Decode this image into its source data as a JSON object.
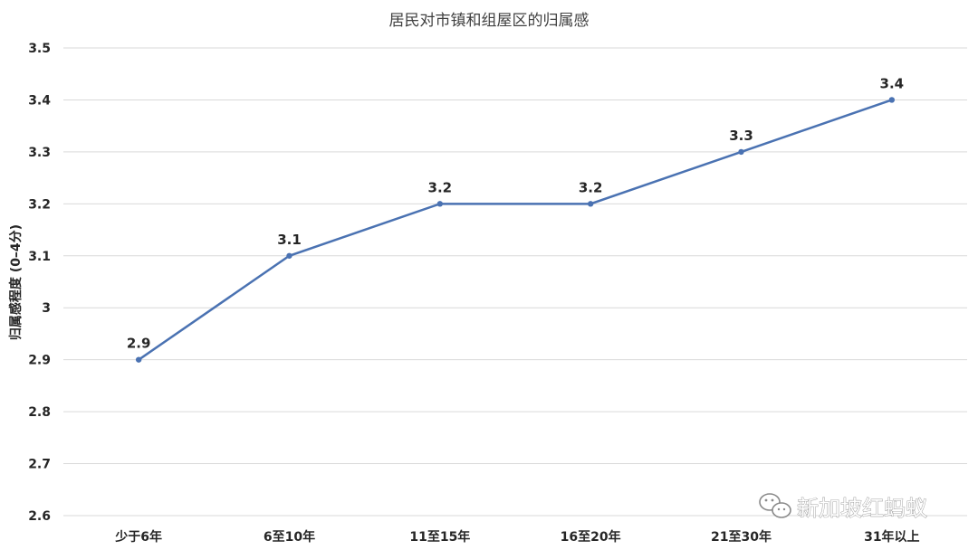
{
  "chart_data": {
    "type": "line",
    "title": "居民对市镇和组屋区的归属感",
    "ylabel": "归属感程度 (0–4分)",
    "xlabel": "",
    "categories": [
      "少于6年",
      "6至10年",
      "11至15年",
      "16至20年",
      "21至30年",
      "31年以上"
    ],
    "series": [
      {
        "values": [
          2.9,
          3.1,
          3.2,
          3.2,
          3.3,
          3.4
        ],
        "color": "#4a72b2"
      }
    ],
    "y_ticks": [
      "2.6",
      "2.7",
      "2.8",
      "2.9",
      "3",
      "3.1",
      "3.2",
      "3.3",
      "3.4",
      "3.5"
    ],
    "ylim": [
      2.6,
      3.5
    ],
    "grid": true,
    "legend": "none",
    "data_labels": [
      "2.9",
      "3.1",
      "3.2",
      "3.2",
      "3.3",
      "3.4"
    ]
  },
  "watermark": {
    "text": "新加坡红蚂蚁",
    "icon": "wechat-icon"
  }
}
